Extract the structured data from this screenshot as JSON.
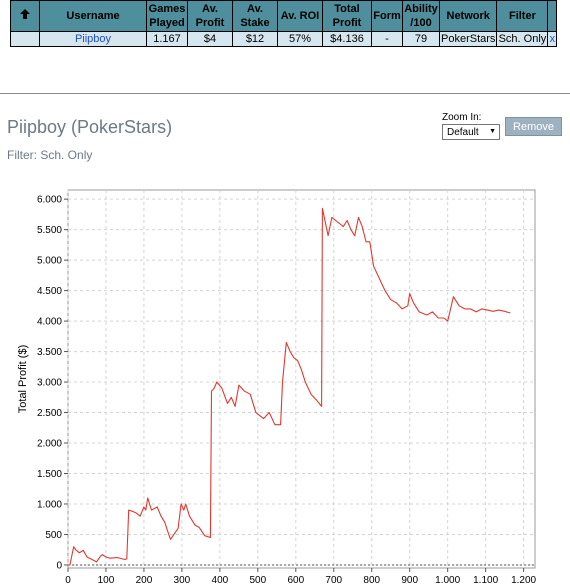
{
  "stats_table": {
    "headers": [
      "",
      "Username",
      "Games Played",
      "Av. Profit",
      "Av. Stake",
      "Av. ROI",
      "Total Profit",
      "Form",
      "Ability /100",
      "Network",
      "Filter",
      ""
    ],
    "header_lines": [
      [
        "Username"
      ],
      [
        "Games",
        "Played"
      ],
      [
        "Av.",
        "Profit"
      ],
      [
        "Av.",
        "Stake"
      ],
      [
        "Av. ROI"
      ],
      [
        "Total",
        "Profit"
      ],
      [
        "Form"
      ],
      [
        "Ability",
        "/100"
      ],
      [
        "Network"
      ],
      [
        "Filter"
      ]
    ],
    "row": {
      "username": "Piipboy",
      "games_played": "1.167",
      "av_profit": "$4",
      "av_stake": "$12",
      "av_roi": "57%",
      "total_profit": "$4.136",
      "form": "-",
      "ability": "79",
      "network": "PokerStars",
      "filter": "Sch. Only",
      "remove": "x"
    }
  },
  "player": {
    "title": "Piipboy (PokerStars)",
    "subtitle": "Filter: Sch. Only"
  },
  "zoom": {
    "label": "Zoom In:",
    "value": "Default"
  },
  "remove_button": "Remove",
  "chart_data": {
    "type": "line",
    "ylabel": "Total Profit ($)",
    "xlabel": "",
    "xlim": [
      0,
      1230
    ],
    "ylim": [
      -50,
      6150
    ],
    "x_ticks": [
      0,
      100,
      200,
      300,
      400,
      500,
      600,
      700,
      800,
      900,
      1000,
      1100,
      1200
    ],
    "x_tick_labels": [
      "0",
      "100",
      "200",
      "300",
      "400",
      "500",
      "600",
      "700",
      "800",
      "900",
      "1.000",
      "1.100",
      "1.200"
    ],
    "y_ticks": [
      0,
      500,
      1000,
      1500,
      2000,
      2500,
      3000,
      3500,
      4000,
      4500,
      5000,
      5500,
      6000
    ],
    "y_tick_labels": [
      "0",
      "500",
      "1.000",
      "1.500",
      "2.000",
      "2.500",
      "3.000",
      "3.500",
      "4.000",
      "4.500",
      "5.000",
      "5.500",
      "6.000"
    ],
    "grid": true,
    "series": [
      {
        "color": "#e0392f",
        "x": [
          0,
          5,
          15,
          20,
          30,
          40,
          50,
          60,
          75,
          85,
          90,
          100,
          110,
          130,
          150,
          155,
          160,
          170,
          180,
          190,
          200,
          205,
          210,
          220,
          235,
          245,
          255,
          260,
          270,
          290,
          298,
          305,
          310,
          320,
          335,
          345,
          360,
          375,
          378,
          385,
          392,
          405,
          420,
          430,
          440,
          450,
          465,
          480,
          495,
          505,
          515,
          530,
          545,
          560,
          565,
          575,
          585,
          595,
          605,
          615,
          625,
          640,
          655,
          668,
          670,
          675,
          685,
          695,
          705,
          715,
          725,
          735,
          745,
          755,
          765,
          775,
          785,
          795,
          805,
          820,
          835,
          850,
          865,
          880,
          895,
          900,
          910,
          925,
          945,
          960,
          975,
          990,
          1000,
          1015,
          1030,
          1045,
          1060,
          1075,
          1090,
          1105,
          1120,
          1135,
          1150,
          1160,
          1165
        ],
        "y": [
          0,
          0,
          300,
          250,
          200,
          240,
          130,
          100,
          50,
          140,
          170,
          130,
          110,
          120,
          90,
          100,
          900,
          880,
          850,
          800,
          950,
          900,
          1100,
          900,
          950,
          800,
          700,
          600,
          420,
          600,
          1000,
          900,
          1000,
          800,
          650,
          620,
          480,
          450,
          2850,
          2900,
          3000,
          2900,
          2650,
          2750,
          2600,
          2950,
          2850,
          2800,
          2500,
          2450,
          2400,
          2500,
          2300,
          2300,
          3000,
          3650,
          3500,
          3400,
          3350,
          3200,
          3000,
          2800,
          2700,
          2600,
          5850,
          5700,
          5400,
          5700,
          5650,
          5600,
          5550,
          5650,
          5500,
          5400,
          5700,
          5550,
          5300,
          5300,
          4900,
          4700,
          4500,
          4350,
          4300,
          4200,
          4250,
          4450,
          4300,
          4150,
          4100,
          4150,
          4050,
          4050,
          4000,
          4400,
          4250,
          4200,
          4200,
          4150,
          4200,
          4180,
          4160,
          4180,
          4160,
          4140,
          4136
        ]
      }
    ]
  }
}
